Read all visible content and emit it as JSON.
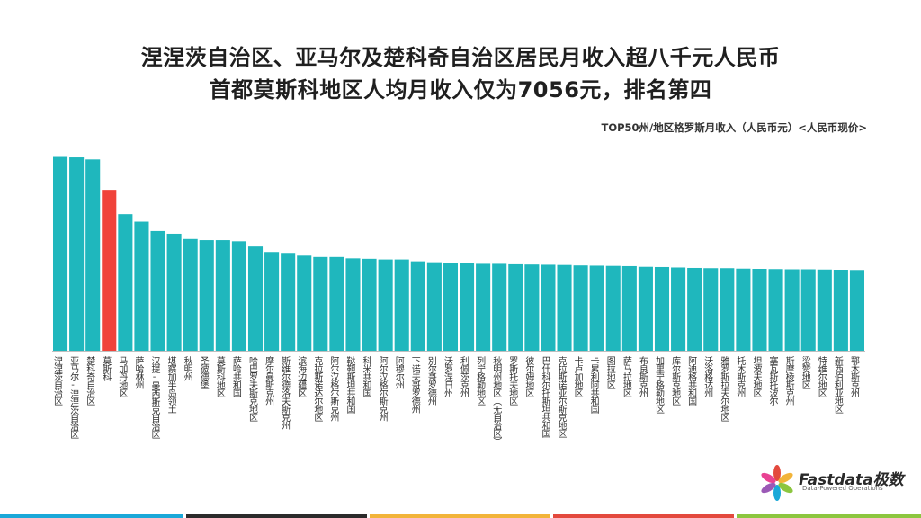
{
  "header": {
    "title_line1": "涅涅茨自治区、亚马尔及楚科奇自治区居民月收入超八千元人民币",
    "title_line2": "首都莫斯科地区人均月收入仅为7056元，排名第四",
    "subtitle": "TOP50州/地区格罗斯月收入（人民币元）<人民币现价>"
  },
  "logo": {
    "name": "Fastdata极数",
    "tagline": "Data-Powered Operations"
  },
  "colors": {
    "bar": "#1fb7bd",
    "highlight": "#f0433a",
    "footer": [
      "#1aa8d8",
      "#2b2b2b",
      "#f2b43a",
      "#e3493d",
      "#8cc63f"
    ]
  },
  "chart_data": {
    "type": "bar",
    "ylim": [
      0,
      8600
    ],
    "highlight_index": 3,
    "categories": [
      "涅涅茨自治区",
      "亚马尔-涅涅茨自治区",
      "楚科奇自治区",
      "莫斯科",
      "马加丹地区",
      "萨哈林州",
      "汉提-曼西斯克自治区",
      "堪察加半岛领土",
      "秋明州",
      "圣彼德堡",
      "莫斯科地区",
      "萨哈共和国",
      "哈巴罗夫斯克地区",
      "摩尔曼斯克州",
      "斯维尔德洛夫斯克州",
      "滨海边疆区",
      "克拉斯诺达尔地区",
      "阿尔汉格尔斯克州",
      "鞑靼斯坦共和国",
      "科米共和国",
      "阿尔汉格尔斯克州",
      "阿穆尔州",
      "下诺夫哥罗德州",
      "別尔哥罗德州",
      "沃罗涅日州",
      "利佩茨克州",
      "列宁格勒地区",
      "秋明州地区（无自治区）",
      "罗斯托夫地区",
      "彼尔姆地区",
      "巴什科尔托斯坦共和国",
      "克拉斯诺亚尔斯克地区",
      "卡卢加地区",
      "卡累利阿共和国",
      "图拉地区",
      "萨马拉地区",
      "布良斯克州",
      "加里宁格勒地区",
      "库尔斯克地区",
      "阿迪格共和国",
      "沃洛格达州",
      "雅罗斯拉夫尔地区",
      "托木斯克州",
      "坦波夫地区",
      "塞瓦斯托波尔",
      "斯摩棱斯克州",
      "梁赞地区",
      "特维尔地区",
      "新西伯利亚地区",
      "鄂木斯克州"
    ],
    "values": [
      8500,
      8480,
      8390,
      7056,
      5990,
      5660,
      5250,
      5130,
      4900,
      4850,
      4850,
      4800,
      4570,
      4330,
      4290,
      4170,
      4110,
      4110,
      4050,
      4030,
      4000,
      4000,
      3920,
      3880,
      3860,
      3840,
      3810,
      3810,
      3790,
      3780,
      3770,
      3760,
      3740,
      3730,
      3720,
      3710,
      3680,
      3670,
      3650,
      3630,
      3620,
      3620,
      3600,
      3590,
      3580,
      3570,
      3570,
      3560,
      3550,
      3540
    ]
  }
}
